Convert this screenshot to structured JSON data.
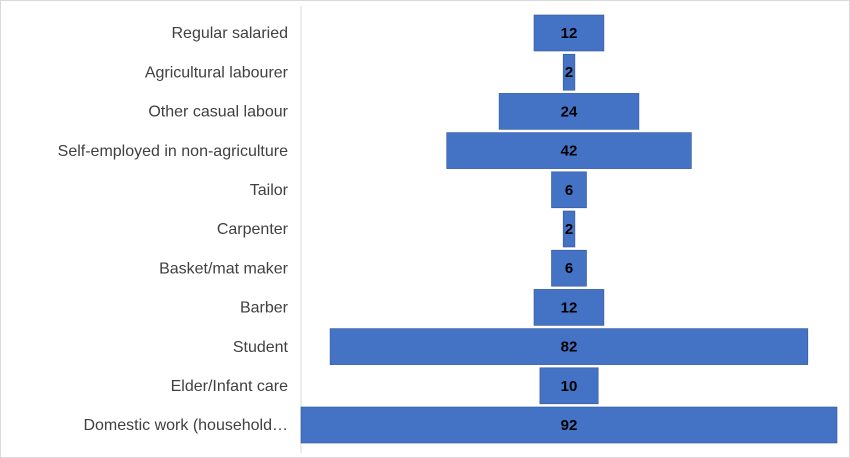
{
  "chart_data": {
    "type": "bar",
    "orientation": "horizontal",
    "style": "funnel-centered",
    "categories": [
      "Regular salaried",
      "Agricultural labourer",
      "Other casual labour",
      "Self-employed in non-agriculture",
      "Tailor",
      "Carpenter",
      "Basket/mat maker",
      "Barber",
      "Student",
      "Elder/Infant care",
      "Domestic work (household…"
    ],
    "values": [
      12,
      2,
      24,
      42,
      6,
      2,
      6,
      12,
      82,
      10,
      92
    ],
    "title": "",
    "xlabel": "",
    "ylabel": "",
    "xlim": [
      0,
      92
    ],
    "data_labels": true,
    "grid": false,
    "legend": "none",
    "colors": {
      "bar": "#4472C4",
      "bar_edge": "#2F5597",
      "axis": "#d9d9d9",
      "label_text": "#404040",
      "value_text": "#000000"
    }
  }
}
